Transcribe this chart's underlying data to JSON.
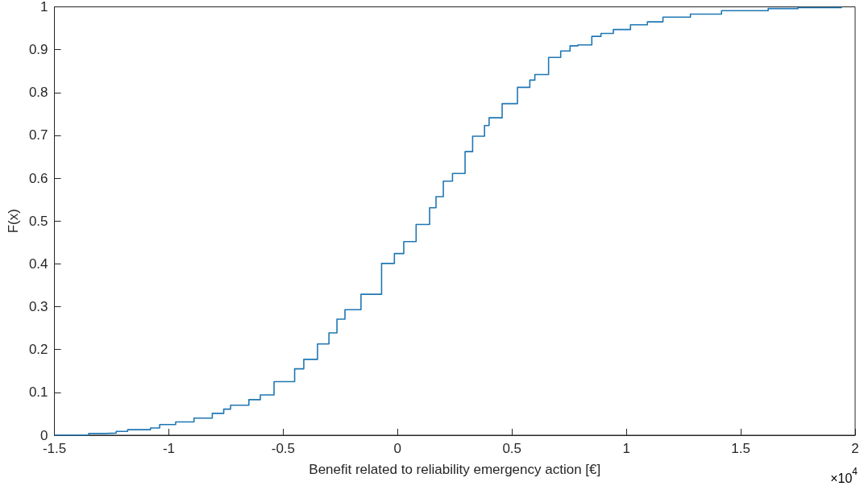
{
  "chart_data": {
    "type": "step",
    "xlabel": "Benefit related to reliability emergency action [€]",
    "ylabel": "F(x)",
    "annotations": [
      "×10$^{4}$"
    ],
    "xlim": [
      -1.5,
      2
    ],
    "xticks": [
      -1.5,
      -1,
      -0.5,
      0,
      0.5,
      1,
      1.5,
      2
    ],
    "ylim": [
      0,
      1
    ],
    "yticks": [
      0,
      0.1,
      0.2,
      0.3,
      0.4,
      0.5,
      0.6,
      0.7,
      0.8,
      0.9,
      1
    ],
    "grid": false,
    "marker": "none",
    "line_style": "solid",
    "series": [
      {
        "color": "#1f77b4",
        "x": [
          -1.5,
          -1.35,
          -1.28,
          -1.23,
          -1.18,
          -1.08,
          -1.04,
          -0.97,
          -0.89,
          -0.81,
          -0.76,
          -0.73,
          -0.65,
          -0.6,
          -0.54,
          -0.45,
          -0.41,
          -0.35,
          -0.3,
          -0.265,
          -0.23,
          -0.16,
          -0.07,
          -0.014,
          0.027,
          0.081,
          0.14,
          0.168,
          0.2,
          0.24,
          0.295,
          0.328,
          0.38,
          0.4,
          0.457,
          0.524,
          0.578,
          0.6,
          0.66,
          0.713,
          0.754,
          0.788,
          0.849,
          0.889,
          0.943,
          1.018,
          1.092,
          1.16,
          1.28,
          1.416,
          1.62,
          1.75,
          1.94
        ],
        "values": [
          0,
          0.004,
          0.005,
          0.009,
          0.013,
          0.017,
          0.025,
          0.031,
          0.04,
          0.051,
          0.061,
          0.07,
          0.083,
          0.094,
          0.125,
          0.155,
          0.177,
          0.213,
          0.239,
          0.271,
          0.293,
          0.329,
          0.401,
          0.424,
          0.452,
          0.492,
          0.531,
          0.557,
          0.593,
          0.611,
          0.662,
          0.698,
          0.723,
          0.741,
          0.774,
          0.812,
          0.829,
          0.842,
          0.882,
          0.897,
          0.909,
          0.911,
          0.931,
          0.938,
          0.947,
          0.958,
          0.965,
          0.976,
          0.983,
          0.991,
          0.996,
          0.998,
          1.0
        ]
      }
    ]
  }
}
